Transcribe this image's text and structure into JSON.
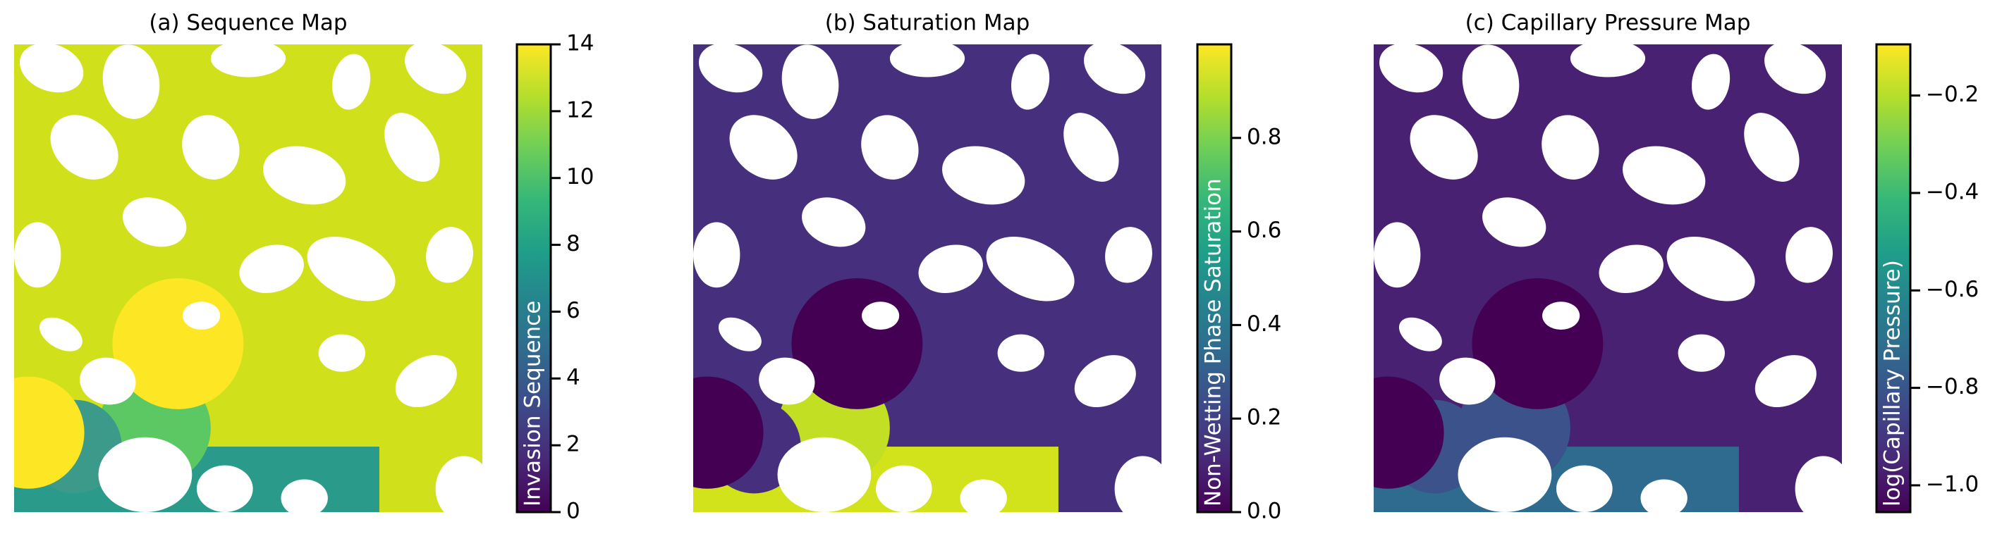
{
  "chart_data": [
    {
      "type": "heatmap",
      "title": "(a) Sequence Map",
      "ylabel": "Invasion Sequence",
      "colormap": "viridis",
      "ylim": [
        0,
        14
      ],
      "yticks": [
        0,
        2,
        4,
        6,
        8,
        10,
        12,
        14
      ]
    },
    {
      "type": "heatmap",
      "title": "(b) Saturation Map",
      "ylabel": "Non-Wetting Phase Saturation",
      "colormap": "viridis",
      "ylim": [
        0,
        1
      ],
      "yticks": [
        {
          "value": 0,
          "label": "0.0"
        },
        0.2,
        0.4,
        0.6,
        0.8
      ]
    },
    {
      "type": "heatmap",
      "title": "(c) Capillary Pressure Map",
      "ylabel": "log(Capillary Pressure)",
      "colormap": "viridis",
      "ylim": [
        -1.055,
        -0.095
      ],
      "yticks": [
        {
          "value": -1.0,
          "label": "−1.0"
        },
        {
          "value": -0.8,
          "label": "−0.8"
        },
        {
          "value": -0.6,
          "label": "−0.6"
        },
        {
          "value": -0.4,
          "label": "−0.4"
        },
        {
          "value": -0.2,
          "label": "−0.2"
        }
      ]
    }
  ]
}
